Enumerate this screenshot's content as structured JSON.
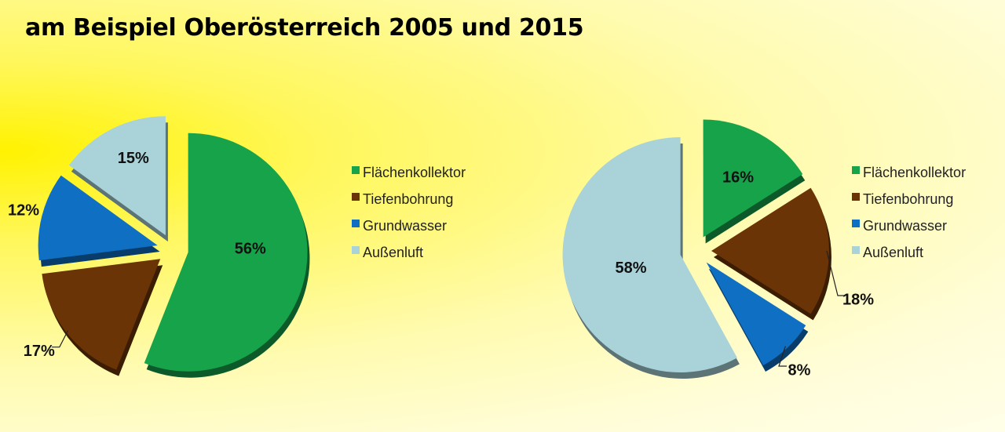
{
  "title": "am Beispiel Oberösterreich 2005 und 2015",
  "colors": {
    "Flächenkollektor": "#16a34a",
    "Tiefenbohrung": "#6b3406",
    "Grundwasser": "#0f6fc3",
    "Außenluft": "#a9d3d9"
  },
  "chart_data": [
    {
      "type": "pie",
      "title": "",
      "categories": [
        "Flächenkollektor",
        "Tiefenbohrung",
        "Grundwasser",
        "Außenluft"
      ],
      "values": [
        56,
        17,
        12,
        15
      ],
      "data_labels": [
        "56%",
        "17%",
        "12%",
        "15%"
      ],
      "legend": [
        "Flächenkollektor",
        "Tiefenbohrung",
        "Grundwasser",
        "Außenluft"
      ],
      "legend_position": "right"
    },
    {
      "type": "pie",
      "title": "",
      "categories": [
        "Flächenkollektor",
        "Tiefenbohrung",
        "Grundwasser",
        "Außenluft"
      ],
      "values": [
        16,
        18,
        8,
        58
      ],
      "data_labels": [
        "16%",
        "18%",
        "8%",
        "58%"
      ],
      "legend": [
        "Flächenkollektor",
        "Tiefenbohrung",
        "Grundwasser",
        "Außenluft"
      ],
      "legend_position": "right"
    }
  ]
}
